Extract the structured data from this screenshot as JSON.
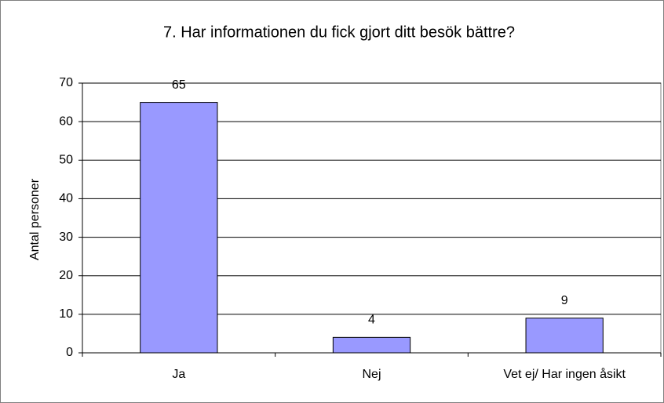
{
  "chart_data": {
    "type": "bar",
    "title": "7. Har informationen du fick gjort ditt besök bättre?",
    "y_label": "Antal personer",
    "categories": [
      "Ja",
      "Nej",
      "Vet ej/ Har ingen åsikt"
    ],
    "values": [
      65,
      4,
      9
    ],
    "color": "#9999ff",
    "ylim": [
      0,
      70
    ],
    "yticks": [
      0,
      10,
      20,
      30,
      40,
      50,
      60,
      70
    ],
    "grid": true
  }
}
